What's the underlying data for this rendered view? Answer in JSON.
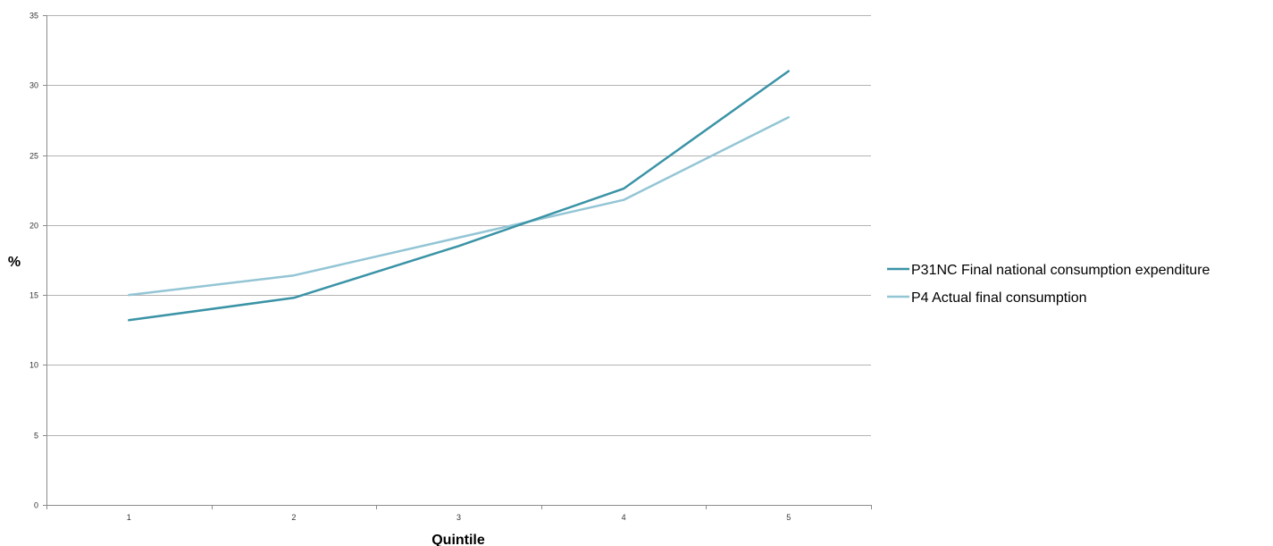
{
  "chart_data": {
    "type": "line",
    "title": "",
    "xlabel": "Quintile",
    "ylabel": "%",
    "categories": [
      "1",
      "2",
      "3",
      "4",
      "5"
    ],
    "ylim": [
      0,
      35
    ],
    "yticks": [
      "0",
      "5",
      "10",
      "15",
      "20",
      "25",
      "30",
      "35"
    ],
    "grid": "horizontal",
    "legend_position": "right",
    "series": [
      {
        "name": "P31NC Final national consumption expenditure",
        "values": [
          13.2,
          14.8,
          18.5,
          22.6,
          31.0
        ],
        "color": "#3a93a6"
      },
      {
        "name": "P4 Actual final consumption",
        "values": [
          15.0,
          16.4,
          19.1,
          21.8,
          27.7
        ],
        "color": "#93c5d5"
      }
    ]
  }
}
